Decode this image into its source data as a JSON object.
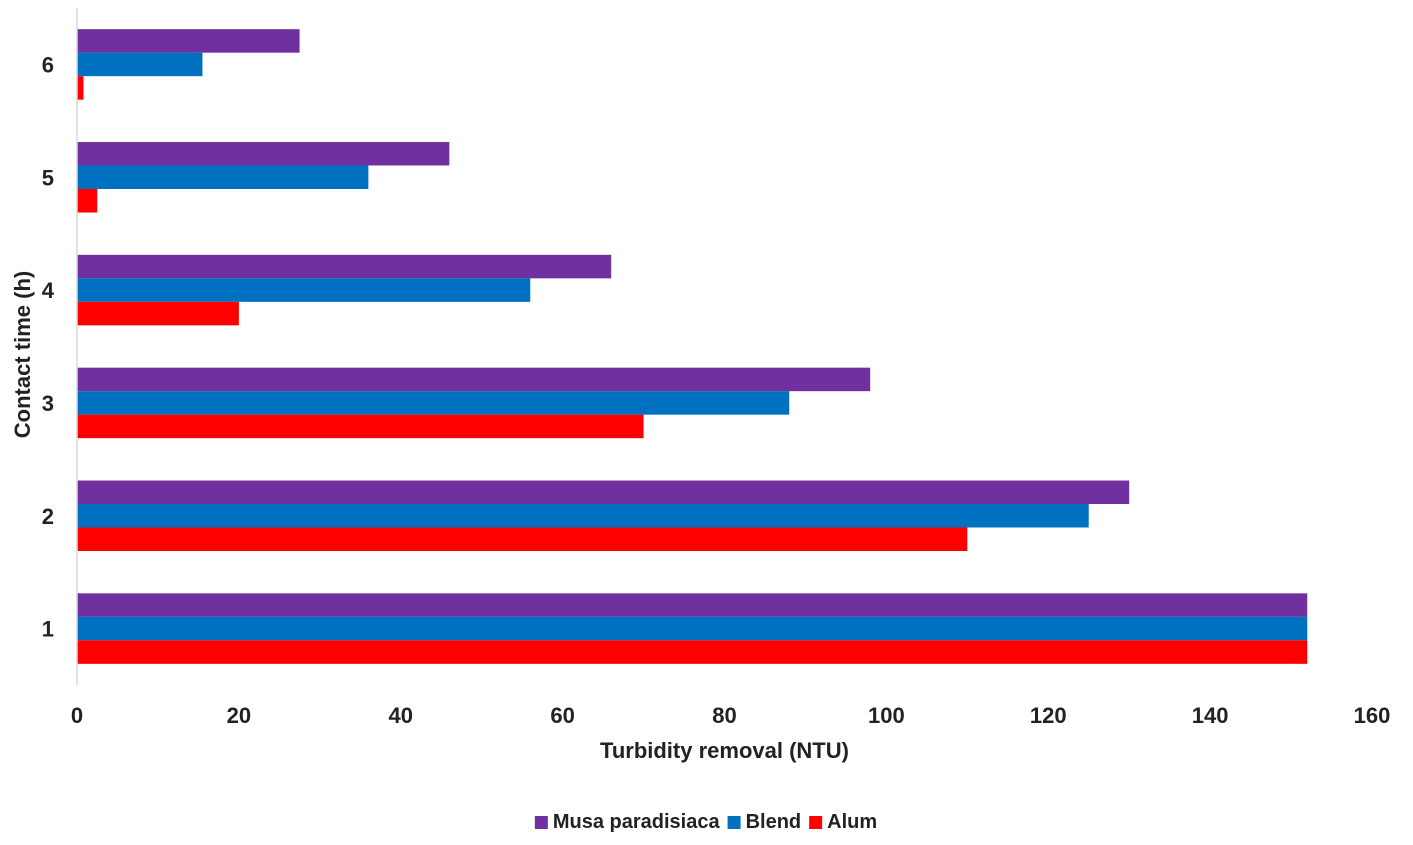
{
  "chart_data": {
    "type": "bar",
    "orientation": "horizontal",
    "title": "",
    "xlabel": "Turbidity removal (NTU)",
    "ylabel": "Contact time (h)",
    "categories": [
      "1",
      "2",
      "3",
      "4",
      "5",
      "6"
    ],
    "xlim": [
      0,
      160
    ],
    "xticks": [
      "0",
      "20",
      "40",
      "60",
      "80",
      "100",
      "120",
      "140",
      "160"
    ],
    "grid": false,
    "legend_position": "bottom",
    "series": [
      {
        "name": "Musa paradisiaca",
        "color": "#7030A0",
        "values": [
          152,
          130,
          98,
          66,
          46,
          27.5
        ]
      },
      {
        "name": "Blend",
        "color": "#0070C0",
        "values": [
          152,
          125,
          88,
          56,
          36,
          15.5
        ]
      },
      {
        "name": "Alum",
        "color": "#FF0000",
        "values": [
          152,
          110,
          70,
          20,
          2.5,
          0.8
        ]
      }
    ]
  }
}
